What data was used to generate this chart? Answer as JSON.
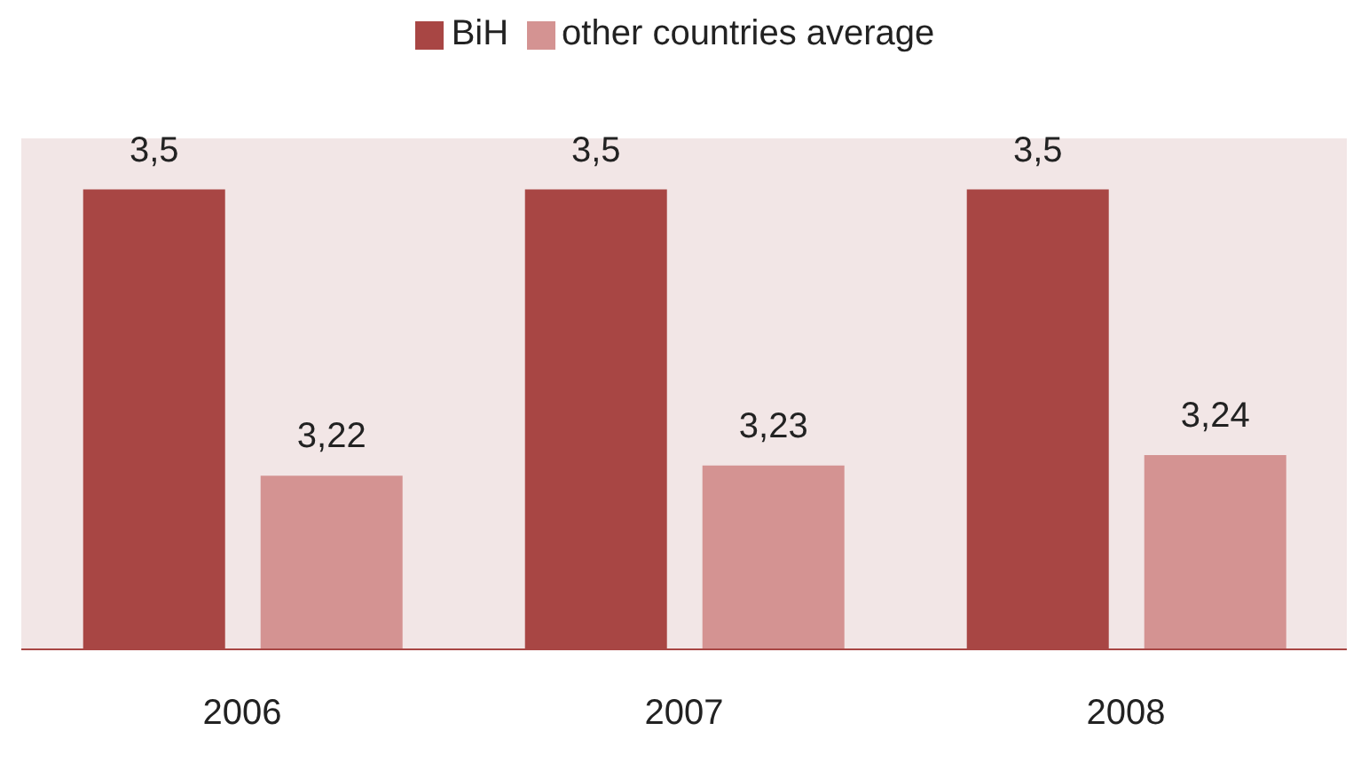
{
  "chart_data": {
    "type": "bar",
    "categories": [
      "2006",
      "2007",
      "2008"
    ],
    "series": [
      {
        "name": "BiH",
        "color": "#a84644",
        "values": [
          3.5,
          3.5,
          3.5
        ],
        "value_labels": [
          "3,5",
          "3,5",
          "3,5"
        ]
      },
      {
        "name": "other countries average",
        "color": "#d49392",
        "values": [
          3.22,
          3.23,
          3.24
        ],
        "value_labels": [
          "3,22",
          "3,23",
          "3,24"
        ]
      }
    ],
    "ylim": [
      3.05,
      3.55
    ],
    "tick_labels": "x",
    "legend": "top",
    "grid": false
  }
}
